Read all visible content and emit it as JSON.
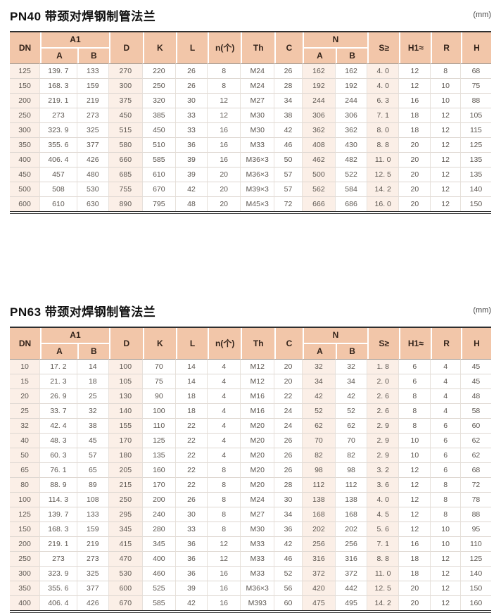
{
  "unit_label": "(mm)",
  "colors": {
    "header_bg": "#f2c6a9",
    "tint_bg": "#fbefe7"
  },
  "columns": {
    "dn": "DN",
    "a1": "A1",
    "a": "A",
    "b": "B",
    "d": "D",
    "k": "K",
    "l": "L",
    "n_count": "n(个)",
    "th": "Th",
    "c": "C",
    "n": "N",
    "s": "S≥",
    "h1": "H1≈",
    "r": "R",
    "h": "H"
  },
  "tables": [
    {
      "title": "PN40 带颈对焊钢制管法兰",
      "rows": [
        [
          "125",
          "139. 7",
          "133",
          "270",
          "220",
          "26",
          "8",
          "M24",
          "26",
          "162",
          "162",
          "4. 0",
          "12",
          "8",
          "68"
        ],
        [
          "150",
          "168. 3",
          "159",
          "300",
          "250",
          "26",
          "8",
          "M24",
          "28",
          "192",
          "192",
          "4. 0",
          "12",
          "10",
          "75"
        ],
        [
          "200",
          "219. 1",
          "219",
          "375",
          "320",
          "30",
          "12",
          "M27",
          "34",
          "244",
          "244",
          "6. 3",
          "16",
          "10",
          "88"
        ],
        [
          "250",
          "273",
          "273",
          "450",
          "385",
          "33",
          "12",
          "M30",
          "38",
          "306",
          "306",
          "7. 1",
          "18",
          "12",
          "105"
        ],
        [
          "300",
          "323. 9",
          "325",
          "515",
          "450",
          "33",
          "16",
          "M30",
          "42",
          "362",
          "362",
          "8. 0",
          "18",
          "12",
          "115"
        ],
        [
          "350",
          "355. 6",
          "377",
          "580",
          "510",
          "36",
          "16",
          "M33",
          "46",
          "408",
          "430",
          "8. 8",
          "20",
          "12",
          "125"
        ],
        [
          "400",
          "406. 4",
          "426",
          "660",
          "585",
          "39",
          "16",
          "M36×3",
          "50",
          "462",
          "482",
          "11. 0",
          "20",
          "12",
          "135"
        ],
        [
          "450",
          "457",
          "480",
          "685",
          "610",
          "39",
          "20",
          "M36×3",
          "57",
          "500",
          "522",
          "12. 5",
          "20",
          "12",
          "135"
        ],
        [
          "500",
          "508",
          "530",
          "755",
          "670",
          "42",
          "20",
          "M39×3",
          "57",
          "562",
          "584",
          "14. 2",
          "20",
          "12",
          "140"
        ],
        [
          "600",
          "610",
          "630",
          "890",
          "795",
          "48",
          "20",
          "M45×3",
          "72",
          "666",
          "686",
          "16. 0",
          "20",
          "12",
          "150"
        ]
      ]
    },
    {
      "title": "PN63 带颈对焊钢制管法兰",
      "rows": [
        [
          "10",
          "17. 2",
          "14",
          "100",
          "70",
          "14",
          "4",
          "M12",
          "20",
          "32",
          "32",
          "1. 8",
          "6",
          "4",
          "45"
        ],
        [
          "15",
          "21. 3",
          "18",
          "105",
          "75",
          "14",
          "4",
          "M12",
          "20",
          "34",
          "34",
          "2. 0",
          "6",
          "4",
          "45"
        ],
        [
          "20",
          "26. 9",
          "25",
          "130",
          "90",
          "18",
          "4",
          "M16",
          "22",
          "42",
          "42",
          "2. 6",
          "8",
          "4",
          "48"
        ],
        [
          "25",
          "33. 7",
          "32",
          "140",
          "100",
          "18",
          "4",
          "M16",
          "24",
          "52",
          "52",
          "2. 6",
          "8",
          "4",
          "58"
        ],
        [
          "32",
          "42. 4",
          "38",
          "155",
          "110",
          "22",
          "4",
          "M20",
          "24",
          "62",
          "62",
          "2. 9",
          "8",
          "6",
          "60"
        ],
        [
          "40",
          "48. 3",
          "45",
          "170",
          "125",
          "22",
          "4",
          "M20",
          "26",
          "70",
          "70",
          "2. 9",
          "10",
          "6",
          "62"
        ],
        [
          "50",
          "60. 3",
          "57",
          "180",
          "135",
          "22",
          "4",
          "M20",
          "26",
          "82",
          "82",
          "2. 9",
          "10",
          "6",
          "62"
        ],
        [
          "65",
          "76. 1",
          "65",
          "205",
          "160",
          "22",
          "8",
          "M20",
          "26",
          "98",
          "98",
          "3. 2",
          "12",
          "6",
          "68"
        ],
        [
          "80",
          "88. 9",
          "89",
          "215",
          "170",
          "22",
          "8",
          "M20",
          "28",
          "112",
          "112",
          "3. 6",
          "12",
          "8",
          "72"
        ],
        [
          "100",
          "114. 3",
          "108",
          "250",
          "200",
          "26",
          "8",
          "M24",
          "30",
          "138",
          "138",
          "4. 0",
          "12",
          "8",
          "78"
        ],
        [
          "125",
          "139. 7",
          "133",
          "295",
          "240",
          "30",
          "8",
          "M27",
          "34",
          "168",
          "168",
          "4. 5",
          "12",
          "8",
          "88"
        ],
        [
          "150",
          "168. 3",
          "159",
          "345",
          "280",
          "33",
          "8",
          "M30",
          "36",
          "202",
          "202",
          "5. 6",
          "12",
          "10",
          "95"
        ],
        [
          "200",
          "219. 1",
          "219",
          "415",
          "345",
          "36",
          "12",
          "M33",
          "42",
          "256",
          "256",
          "7. 1",
          "16",
          "10",
          "110"
        ],
        [
          "250",
          "273",
          "273",
          "470",
          "400",
          "36",
          "12",
          "M33",
          "46",
          "316",
          "316",
          "8. 8",
          "18",
          "12",
          "125"
        ],
        [
          "300",
          "323. 9",
          "325",
          "530",
          "460",
          "36",
          "16",
          "M33",
          "52",
          "372",
          "372",
          "11. 0",
          "18",
          "12",
          "140"
        ],
        [
          "350",
          "355. 6",
          "377",
          "600",
          "525",
          "39",
          "16",
          "M36×3",
          "56",
          "420",
          "442",
          "12. 5",
          "20",
          "12",
          "150"
        ],
        [
          "400",
          "406. 4",
          "426",
          "670",
          "585",
          "42",
          "16",
          "M393",
          "60",
          "475",
          "495",
          "14. 2",
          "20",
          "12",
          "160"
        ]
      ]
    }
  ]
}
